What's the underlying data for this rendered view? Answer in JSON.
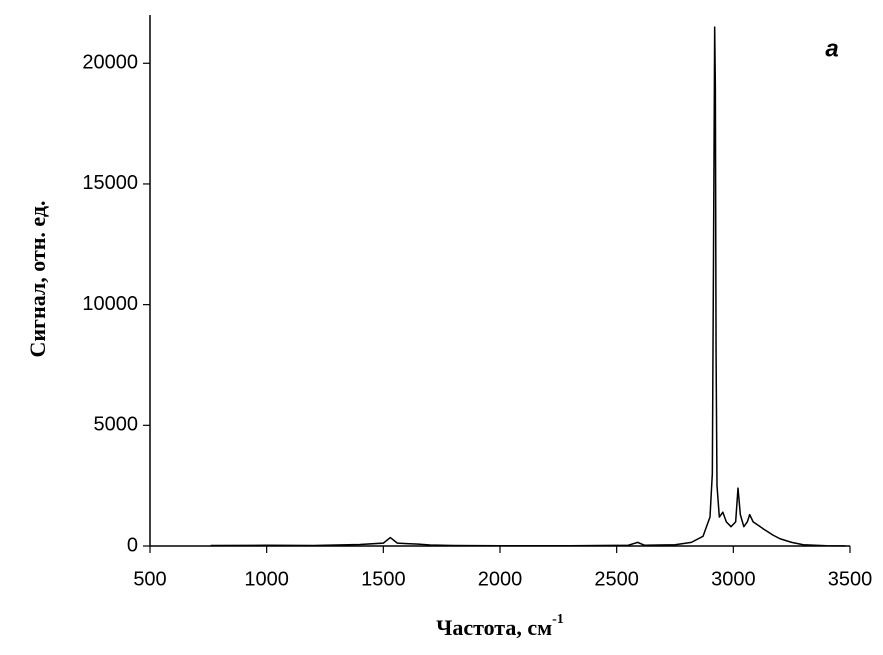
{
  "chart_data": {
    "type": "line",
    "xlabel": "Частота, см",
    "xlabel_sup": "-1",
    "ylabel": "Сигнал, отн. ед.",
    "annotation": "a",
    "xlim": [
      500,
      3500
    ],
    "xticks": [
      500,
      1000,
      1500,
      2000,
      2500,
      3000,
      3500
    ],
    "ylim": [
      0,
      22000
    ],
    "yticks": [
      0,
      5000,
      10000,
      15000,
      20000
    ],
    "series": [
      {
        "color": "#000000",
        "x": [
          760,
          1000,
          1200,
          1400,
          1500,
          1530,
          1560,
          1600,
          1650,
          1700,
          1800,
          2000,
          2300,
          2550,
          2590,
          2620,
          2750,
          2820,
          2870,
          2900,
          2910,
          2915,
          2920,
          2923,
          2926,
          2930,
          2940,
          2955,
          2970,
          2990,
          3010,
          3020,
          3030,
          3045,
          3060,
          3070,
          3085,
          3100,
          3130,
          3170,
          3200,
          3250,
          3300,
          3400,
          3480
        ],
        "values": [
          20,
          30,
          20,
          60,
          120,
          350,
          120,
          100,
          80,
          40,
          20,
          10,
          10,
          30,
          150,
          30,
          50,
          150,
          400,
          1200,
          3000,
          12000,
          21500,
          19000,
          8000,
          2500,
          1200,
          1400,
          1000,
          800,
          1000,
          2400,
          1300,
          800,
          1000,
          1300,
          1000,
          900,
          700,
          450,
          300,
          150,
          50,
          10,
          5
        ]
      }
    ]
  }
}
